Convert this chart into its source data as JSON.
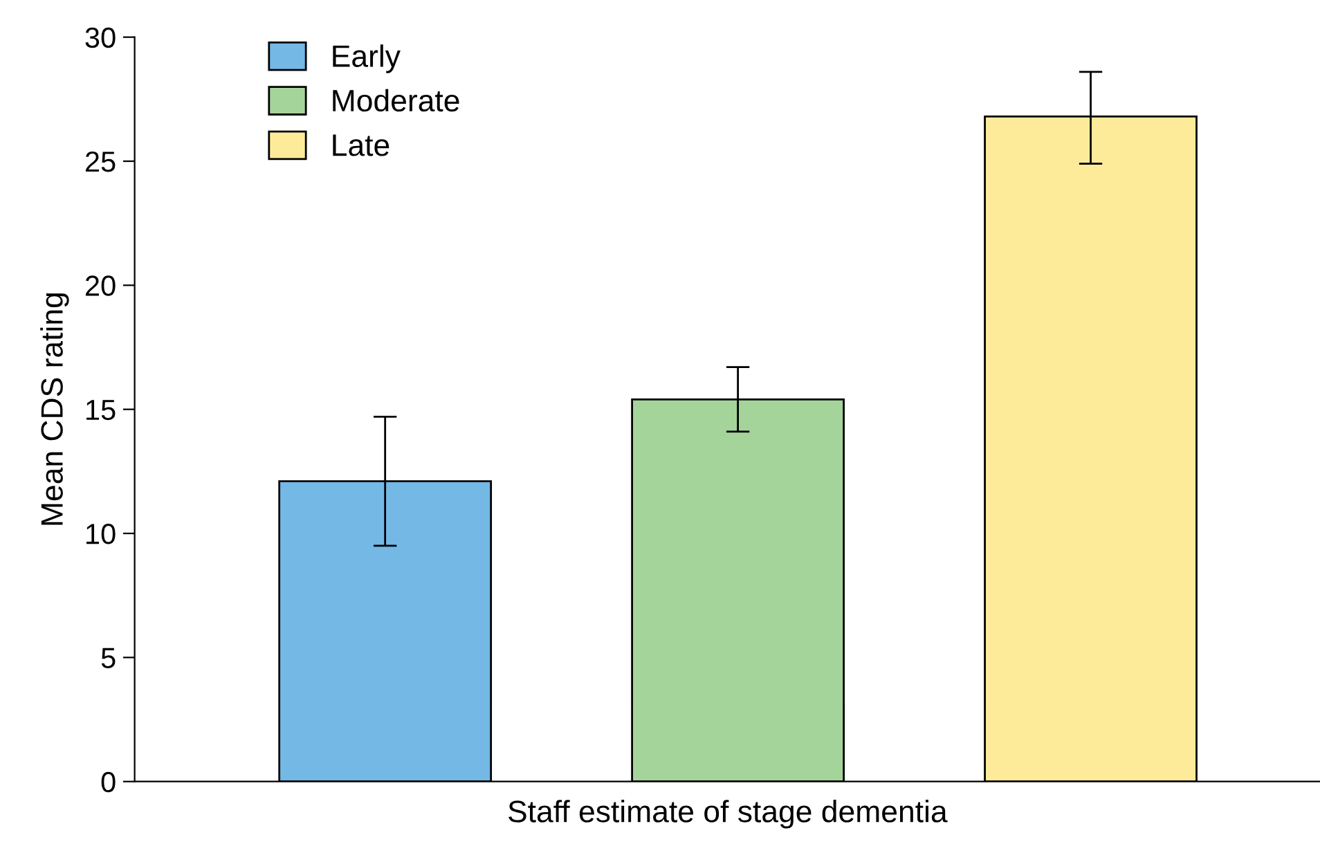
{
  "chart_data": {
    "type": "bar",
    "xlabel": "Staff estimate of stage dementia",
    "ylabel": "Mean CDS rating",
    "categories": [
      null,
      null,
      null
    ],
    "series": [
      {
        "name": "Early",
        "color": "#74b8e6",
        "values": [
          12.1,
          null,
          null
        ],
        "errors": [
          [
            9.5,
            14.7
          ],
          null,
          null
        ]
      },
      {
        "name": "Moderate",
        "color": "#a5d49b",
        "values": [
          null,
          15.4,
          null
        ],
        "errors": [
          null,
          [
            14.1,
            16.7
          ],
          null
        ]
      },
      {
        "name": "Late",
        "color": "#fdeb9a",
        "values": [
          null,
          null,
          26.8
        ],
        "errors": [
          null,
          null,
          [
            24.9,
            28.6
          ]
        ]
      }
    ],
    "ylim": [
      0,
      30
    ],
    "yticks": [
      0,
      5,
      10,
      15,
      20,
      25,
      30
    ],
    "grid": false,
    "legend": "top left",
    "tick_labels": "y"
  }
}
